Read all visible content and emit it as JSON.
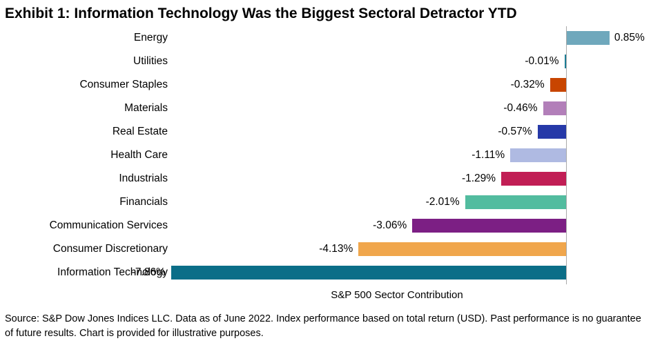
{
  "title": "Exhibit 1: Information Technology Was the Biggest Sectoral Detractor YTD",
  "chart_data": {
    "type": "bar",
    "orientation": "horizontal",
    "title": "Exhibit 1: Information Technology Was the Biggest Sectoral Detractor YTD",
    "xlabel": "S&P 500 Sector Contribution",
    "ylabel": "",
    "xlim": [
      -8.2,
      1.7
    ],
    "grid": false,
    "legend": "none",
    "zero_axis_color": "#a9a9a9",
    "categories": [
      "Energy",
      "Utilities",
      "Consumer Staples",
      "Materials",
      "Real Estate",
      "Health Care",
      "Industrials",
      "Financials",
      "Communication Services",
      "Consumer Discretionary",
      "Information Technology"
    ],
    "values": [
      0.85,
      -0.01,
      -0.32,
      -0.46,
      -0.57,
      -1.11,
      -1.29,
      -2.01,
      -3.06,
      -4.13,
      -7.86
    ],
    "value_labels": [
      "0.85%",
      "-0.01%",
      "-0.32%",
      "-0.46%",
      "-0.57%",
      "-1.11%",
      "-1.29%",
      "-2.01%",
      "-3.06%",
      "-4.13%",
      "-7.86%"
    ],
    "colors": [
      "#6fa8bc",
      "#1d7d95",
      "#c84500",
      "#b27fb9",
      "#2639a8",
      "#afbae2",
      "#c11e55",
      "#52bc9f",
      "#7c1f84",
      "#f0a64c",
      "#0b6e88"
    ]
  },
  "footer": {
    "source": "Source: S&P Dow Jones Indices LLC. Data as of June 2022. Index performance based on total return (USD). Past performance is no guarantee of future results. Chart is provided for illustrative purposes."
  }
}
